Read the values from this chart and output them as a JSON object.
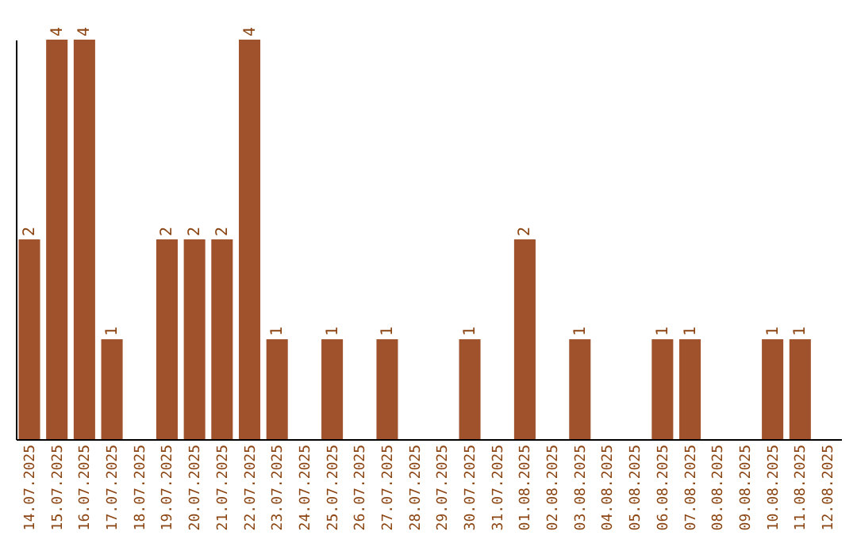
{
  "chart_data": {
    "type": "bar",
    "categories": [
      "14.07.2025",
      "15.07.2025",
      "16.07.2025",
      "17.07.2025",
      "18.07.2025",
      "19.07.2025",
      "20.07.2025",
      "21.07.2025",
      "22.07.2025",
      "23.07.2025",
      "24.07.2025",
      "25.07.2025",
      "26.07.2025",
      "27.07.2025",
      "28.07.2025",
      "29.07.2025",
      "30.07.2025",
      "31.07.2025",
      "01.08.2025",
      "02.08.2025",
      "03.08.2025",
      "04.08.2025",
      "05.08.2025",
      "06.08.2025",
      "07.08.2025",
      "08.08.2025",
      "09.08.2025",
      "10.08.2025",
      "11.08.2025",
      "12.08.2025"
    ],
    "values": [
      2,
      4,
      4,
      1,
      0,
      2,
      2,
      2,
      4,
      1,
      0,
      1,
      0,
      1,
      0,
      0,
      1,
      0,
      2,
      0,
      1,
      0,
      0,
      1,
      1,
      0,
      0,
      1,
      1,
      0
    ],
    "value_labels": [
      "2",
      "4",
      "4",
      "1",
      null,
      "2",
      "2",
      "2",
      "4",
      "1",
      null,
      "1",
      null,
      "1",
      null,
      null,
      "1",
      null,
      "2",
      null,
      "1",
      null,
      null,
      "1",
      "1",
      null,
      null,
      "1",
      "1",
      null
    ],
    "color": "#a0522d",
    "grid": false
  }
}
